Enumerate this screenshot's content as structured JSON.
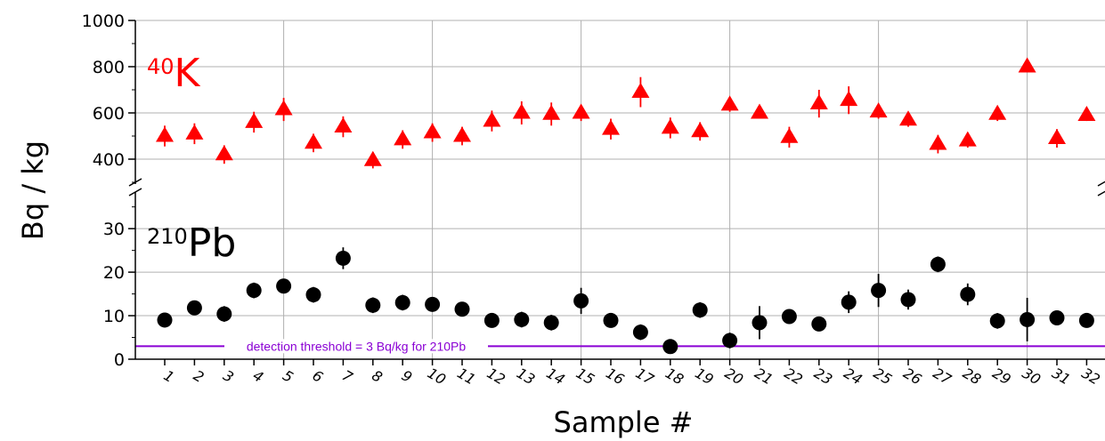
{
  "colors": {
    "k40": "#ff0000",
    "pb210": "#000000",
    "threshold": "#8a00d4",
    "grid": "#b0b0b0"
  },
  "chart_data": {
    "type": "scatter",
    "xlabel": "Sample #",
    "ylabel": "Bq / kg",
    "x": [
      1,
      2,
      3,
      4,
      5,
      6,
      7,
      8,
      9,
      10,
      11,
      12,
      13,
      14,
      15,
      16,
      17,
      18,
      19,
      20,
      21,
      22,
      23,
      24,
      25,
      26,
      27,
      28,
      29,
      30,
      31,
      32
    ],
    "x_tick_labels": [
      "1",
      "2",
      "3",
      "4",
      "5",
      "6",
      "7",
      "8",
      "9",
      "10",
      "11",
      "12",
      "13",
      "14",
      "15",
      "16",
      "17",
      "18",
      "19",
      "20",
      "21",
      "22",
      "23",
      "24",
      "25",
      "26",
      "27",
      "28",
      "29",
      "30",
      "31",
      "32"
    ],
    "axis_break": true,
    "upper_panel": {
      "ylim": [
        300,
        1000
      ],
      "y_ticks": [
        400,
        600,
        800,
        1000
      ],
      "y_tick_labels": [
        "400",
        "600",
        "800",
        "1000"
      ]
    },
    "lower_panel": {
      "ylim": [
        0,
        38
      ],
      "y_ticks": [
        0,
        10,
        20,
        30
      ],
      "y_tick_labels": [
        "0",
        "10",
        "20",
        "30"
      ]
    },
    "grid": true,
    "series": [
      {
        "label_mass": "40",
        "label_element": "K",
        "marker": "triangle",
        "color": "#ff0000",
        "panel": "upper",
        "values": [
          500,
          510,
          420,
          560,
          615,
          470,
          540,
          395,
          485,
          515,
          500,
          565,
          600,
          595,
          600,
          530,
          690,
          535,
          520,
          635,
          600,
          495,
          640,
          655,
          605,
          570,
          465,
          480,
          595,
          800,
          490,
          590
        ],
        "errors": [
          45,
          45,
          40,
          45,
          50,
          40,
          45,
          35,
          40,
          40,
          40,
          45,
          50,
          50,
          35,
          45,
          65,
          45,
          40,
          30,
          25,
          45,
          60,
          60,
          30,
          30,
          40,
          30,
          30,
          20,
          40,
          25
        ]
      },
      {
        "label_mass": "210",
        "label_element": "Pb",
        "marker": "circle",
        "color": "#000000",
        "panel": "lower",
        "values": [
          9,
          11.8,
          10.4,
          15.8,
          16.8,
          14.8,
          23.2,
          12.4,
          13,
          12.6,
          11.5,
          8.9,
          9.1,
          8.4,
          13.4,
          8.9,
          6.2,
          2.9,
          11.3,
          4.3,
          8.4,
          9.8,
          8.1,
          13.1,
          15.8,
          13.7,
          21.8,
          14.9,
          8.8,
          9.1,
          9.5,
          8.9
        ],
        "errors": [
          0.5,
          0.5,
          1.8,
          1.8,
          1.3,
          1.8,
          2.5,
          1.8,
          1.8,
          0.6,
          0.5,
          0.6,
          1.8,
          1.8,
          3,
          0.6,
          1.8,
          0.5,
          1.8,
          1.8,
          3.8,
          1.3,
          0.6,
          2.5,
          3.8,
          2.3,
          1.8,
          2.5,
          1.8,
          5,
          0.5,
          1.3
        ]
      }
    ],
    "threshold": {
      "value": 3,
      "label": "detection threshold = 3 Bq/kg for 210Pb"
    }
  }
}
